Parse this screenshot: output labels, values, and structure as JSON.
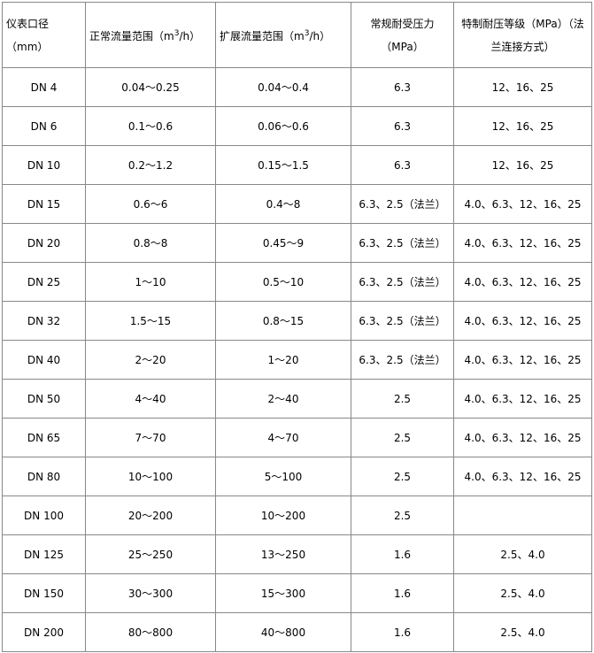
{
  "headers": {
    "size": "仪表口径（mm）",
    "normal_flow_pre": "正常流量范围（m",
    "normal_flow_sup": "3",
    "normal_flow_post": "/h）",
    "ext_flow_pre": "扩展流量范围（m",
    "ext_flow_sup": "3",
    "ext_flow_post": "/h）",
    "pressure": "常规耐受压力（MPa）",
    "special": "特制耐压等级（MPa）（法兰连接方式）"
  },
  "rows": [
    [
      "DN 4",
      "0.04～0.25",
      "0.04～0.4",
      "6.3",
      "12、16、25"
    ],
    [
      "DN 6",
      "0.1～0.6",
      "0.06～0.6",
      "6.3",
      "12、16、25"
    ],
    [
      "DN 10",
      "0.2～1.2",
      "0.15～1.5",
      "6.3",
      "12、16、25"
    ],
    [
      "DN 15",
      "0.6～6",
      "0.4～8",
      "6.3、2.5（法兰）",
      "4.0、6.3、12、16、25"
    ],
    [
      "DN 20",
      "0.8～8",
      "0.45～9",
      "6.3、2.5（法兰）",
      "4.0、6.3、12、16、25"
    ],
    [
      "DN 25",
      "1～10",
      "0.5～10",
      "6.3、2.5（法兰）",
      "4.0、6.3、12、16、25"
    ],
    [
      "DN 32",
      "1.5～15",
      "0.8～15",
      "6.3、2.5（法兰）",
      "4.0、6.3、12、16、25"
    ],
    [
      "DN 40",
      "2～20",
      "1～20",
      "6.3、2.5（法兰）",
      "4.0、6.3、12、16、25"
    ],
    [
      "DN 50",
      "4～40",
      "2～40",
      "2.5",
      "4.0、6.3、12、16、25"
    ],
    [
      "DN 65",
      "7～70",
      "4～70",
      "2.5",
      "4.0、6.3、12、16、25"
    ],
    [
      "DN 80",
      "10～100",
      "5～100",
      "2.5",
      "4.0、6.3、12、16、25"
    ],
    [
      "DN 100",
      "20～200",
      "10～200",
      "2.5",
      ""
    ],
    [
      "DN 125",
      "25～250",
      "13～250",
      "1.6",
      "2.5、4.0"
    ],
    [
      "DN 150",
      "30～300",
      "15～300",
      "1.6",
      "2.5、4.0"
    ],
    [
      "DN 200",
      "80～800",
      "40～800",
      "1.6",
      "2.5、4.0"
    ]
  ]
}
